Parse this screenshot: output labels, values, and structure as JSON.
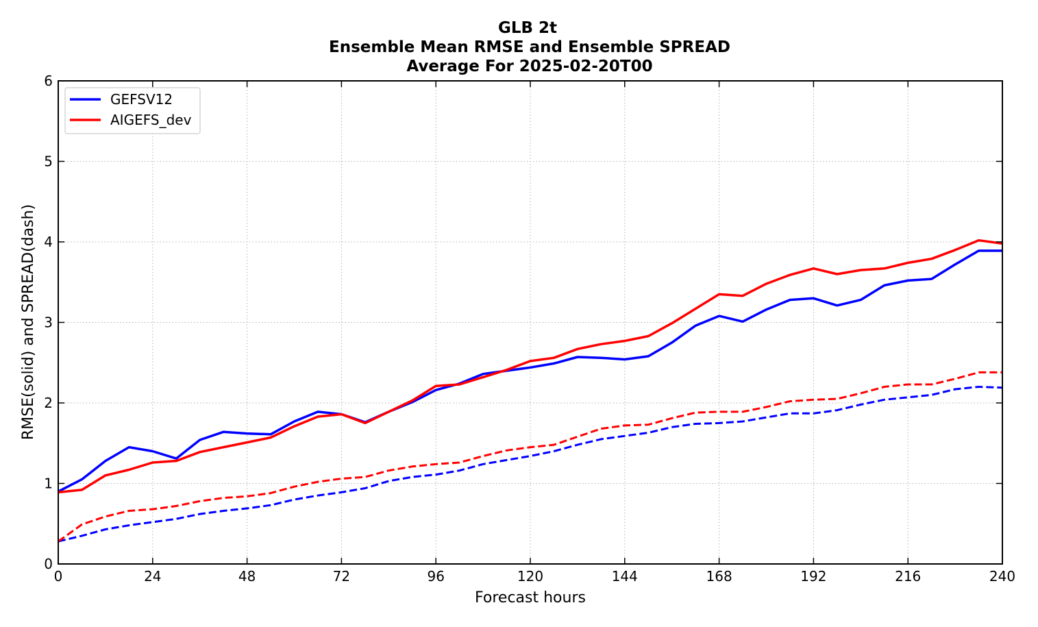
{
  "chart_data": {
    "type": "line",
    "title": [
      "GLB 2t",
      "Ensemble Mean RMSE and Ensemble SPREAD",
      "Average For 2025-02-20T00"
    ],
    "xlabel": "Forecast hours",
    "ylabel": "RMSE(solid) and SPREAD(dash)",
    "xlim": [
      0,
      240
    ],
    "ylim": [
      0,
      6
    ],
    "xticks": [
      0,
      24,
      48,
      72,
      96,
      120,
      144,
      168,
      192,
      216,
      240
    ],
    "yticks": [
      0,
      1,
      2,
      3,
      4,
      5,
      6
    ],
    "grid": true,
    "legend_position": "top-left",
    "x": [
      0,
      6,
      12,
      18,
      24,
      30,
      36,
      42,
      48,
      54,
      60,
      66,
      72,
      78,
      84,
      90,
      96,
      102,
      108,
      114,
      120,
      126,
      132,
      138,
      144,
      150,
      156,
      162,
      168,
      174,
      180,
      186,
      192,
      198,
      204,
      210,
      216,
      222,
      228,
      234,
      240
    ],
    "series": [
      {
        "name": "GEFSV12",
        "color": "#0000ff",
        "rmse": [
          0.9,
          1.05,
          1.28,
          1.45,
          1.4,
          1.31,
          1.54,
          1.64,
          1.62,
          1.61,
          1.77,
          1.89,
          1.86,
          1.76,
          1.89,
          2.01,
          2.16,
          2.24,
          2.36,
          2.4,
          2.44,
          2.49,
          2.57,
          2.56,
          2.54,
          2.58,
          2.75,
          2.96,
          3.08,
          3.01,
          3.16,
          3.28,
          3.3,
          3.21,
          3.28,
          3.46,
          3.52,
          3.54,
          3.72,
          3.89,
          3.89
        ],
        "spread": [
          0.28,
          0.35,
          0.43,
          0.48,
          0.52,
          0.56,
          0.62,
          0.66,
          0.69,
          0.73,
          0.8,
          0.85,
          0.89,
          0.94,
          1.03,
          1.08,
          1.11,
          1.16,
          1.24,
          1.29,
          1.34,
          1.4,
          1.48,
          1.55,
          1.59,
          1.63,
          1.7,
          1.74,
          1.75,
          1.77,
          1.82,
          1.87,
          1.87,
          1.91,
          1.98,
          2.04,
          2.07,
          2.1,
          2.17,
          2.2,
          2.19
        ]
      },
      {
        "name": "AIGEFS_dev",
        "color": "#ff0000",
        "rmse": [
          0.89,
          0.92,
          1.1,
          1.17,
          1.26,
          1.28,
          1.39,
          1.45,
          1.51,
          1.57,
          1.71,
          1.83,
          1.86,
          1.75,
          1.89,
          2.03,
          2.21,
          2.23,
          2.32,
          2.41,
          2.52,
          2.56,
          2.67,
          2.73,
          2.77,
          2.83,
          2.99,
          3.17,
          3.35,
          3.33,
          3.48,
          3.59,
          3.67,
          3.6,
          3.65,
          3.67,
          3.74,
          3.79,
          3.9,
          4.02,
          3.98
        ],
        "spread": [
          0.28,
          0.49,
          0.59,
          0.66,
          0.68,
          0.72,
          0.78,
          0.82,
          0.84,
          0.88,
          0.96,
          1.02,
          1.06,
          1.08,
          1.16,
          1.21,
          1.24,
          1.26,
          1.34,
          1.41,
          1.45,
          1.48,
          1.58,
          1.68,
          1.72,
          1.73,
          1.81,
          1.88,
          1.89,
          1.89,
          1.95,
          2.02,
          2.04,
          2.05,
          2.12,
          2.2,
          2.23,
          2.23,
          2.3,
          2.38,
          2.38
        ]
      }
    ]
  }
}
